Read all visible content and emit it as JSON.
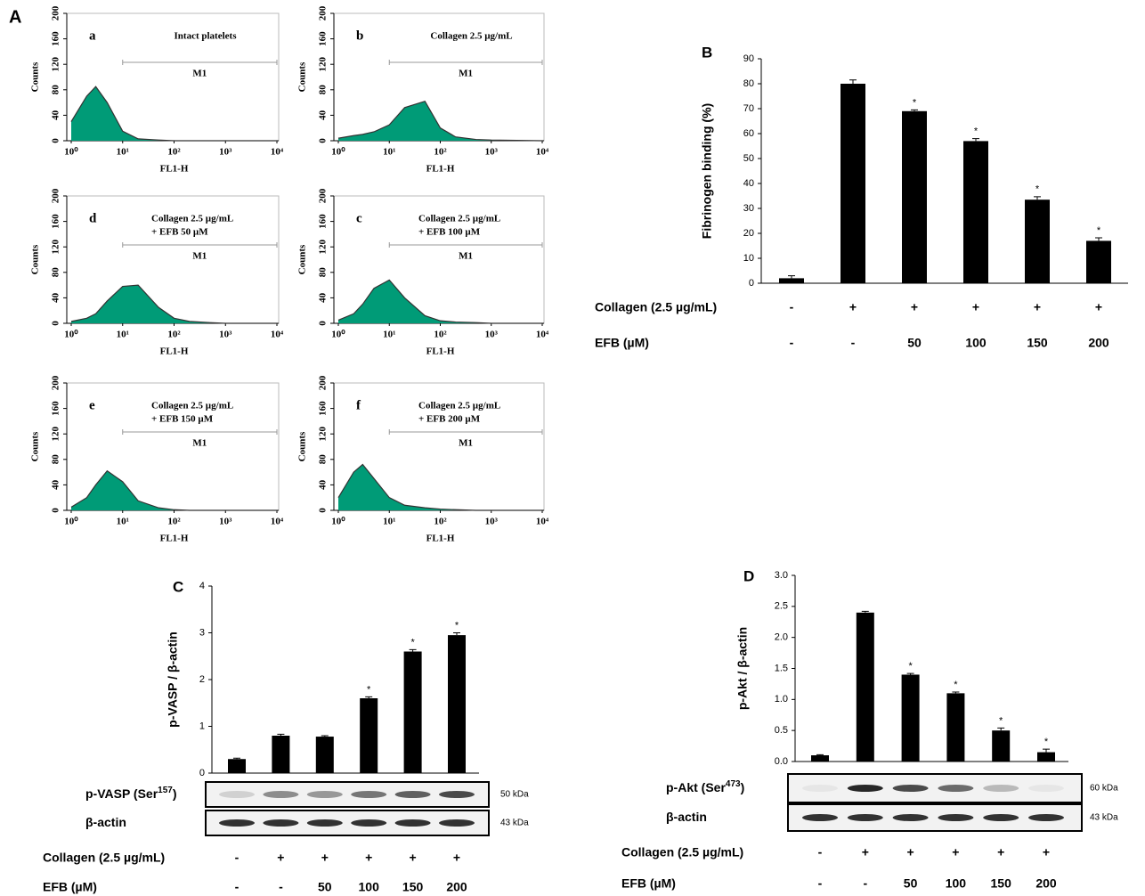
{
  "chart_data": [
    {
      "type": "area",
      "panel": "a",
      "title": [
        "Intact platelets"
      ],
      "marker": {
        "label": "M1",
        "range": [
          10,
          10000
        ]
      },
      "xlabel": "FL1-H",
      "ylabel": "Counts",
      "x": [
        1,
        2,
        3,
        5,
        10,
        20,
        50,
        100,
        200,
        500,
        1000,
        10000
      ],
      "values": [
        30,
        70,
        85,
        60,
        15,
        3,
        1,
        0,
        0,
        0,
        0,
        0
      ],
      "color": "#009b77",
      "xscale": "log",
      "xlim": [
        1,
        10000
      ],
      "xticks": [
        {
          "value": 1,
          "label": "10⁰"
        },
        {
          "value": 10,
          "label": "10¹"
        },
        {
          "value": 100,
          "label": "10²"
        },
        {
          "value": 1000,
          "label": "10³"
        },
        {
          "value": 10000,
          "label": "10⁴"
        }
      ],
      "ylim": [
        0,
        200
      ],
      "yticks": [
        0,
        40,
        80,
        120,
        160,
        200
      ]
    },
    {
      "type": "area",
      "panel": "b",
      "title": [
        "Collagen 2.5 µg/mL"
      ],
      "marker": {
        "label": "M1",
        "range": [
          10,
          10000
        ]
      },
      "xlabel": "FL1-H",
      "ylabel": "Counts",
      "x": [
        1,
        2,
        3,
        5,
        10,
        20,
        50,
        100,
        200,
        500,
        1000,
        10000
      ],
      "values": [
        4,
        8,
        10,
        14,
        25,
        52,
        62,
        20,
        6,
        2,
        1,
        0
      ],
      "color": "#009b77",
      "xscale": "log",
      "xlim": [
        1,
        10000
      ],
      "xticks": [
        {
          "value": 1,
          "label": "10⁰"
        },
        {
          "value": 10,
          "label": "10¹"
        },
        {
          "value": 100,
          "label": "10²"
        },
        {
          "value": 1000,
          "label": "10³"
        },
        {
          "value": 10000,
          "label": "10⁴"
        }
      ],
      "ylim": [
        0,
        200
      ],
      "yticks": [
        0,
        40,
        80,
        120,
        160,
        200
      ]
    },
    {
      "type": "area",
      "panel": "d",
      "title": [
        "Collagen 2.5 µg/mL",
        "+ EFB 50 µM"
      ],
      "marker": {
        "label": "M1",
        "range": [
          10,
          10000
        ]
      },
      "xlabel": "FL1-H",
      "ylabel": "Counts",
      "x": [
        1,
        2,
        3,
        5,
        10,
        20,
        50,
        100,
        200,
        500,
        1000,
        10000
      ],
      "values": [
        3,
        8,
        15,
        35,
        58,
        60,
        25,
        8,
        3,
        1,
        0,
        0
      ],
      "color": "#009b77",
      "xscale": "log",
      "xlim": [
        1,
        10000
      ],
      "xticks": [
        {
          "value": 1,
          "label": "10⁰"
        },
        {
          "value": 10,
          "label": "10¹"
        },
        {
          "value": 100,
          "label": "10²"
        },
        {
          "value": 1000,
          "label": "10³"
        },
        {
          "value": 10000,
          "label": "10⁴"
        }
      ],
      "ylim": [
        0,
        200
      ],
      "yticks": [
        0,
        40,
        80,
        120,
        160,
        200
      ]
    },
    {
      "type": "area",
      "panel": "c",
      "title": [
        "Collagen 2.5 µg/mL",
        "+ EFB 100 µM"
      ],
      "marker": {
        "label": "M1",
        "range": [
          10,
          10000
        ]
      },
      "xlabel": "FL1-H",
      "ylabel": "Counts",
      "x": [
        1,
        2,
        3,
        5,
        10,
        20,
        50,
        100,
        200,
        500,
        1000,
        10000
      ],
      "values": [
        5,
        15,
        30,
        55,
        68,
        40,
        12,
        4,
        2,
        1,
        0,
        0
      ],
      "color": "#009b77",
      "xscale": "log",
      "xlim": [
        1,
        10000
      ],
      "xticks": [
        {
          "value": 1,
          "label": "10⁰"
        },
        {
          "value": 10,
          "label": "10¹"
        },
        {
          "value": 100,
          "label": "10²"
        },
        {
          "value": 1000,
          "label": "10³"
        },
        {
          "value": 10000,
          "label": "10⁴"
        }
      ],
      "ylim": [
        0,
        200
      ],
      "yticks": [
        0,
        40,
        80,
        120,
        160,
        200
      ]
    },
    {
      "type": "area",
      "panel": "e",
      "title": [
        "Collagen 2.5 µg/mL",
        "+ EFB 150 µM"
      ],
      "marker": {
        "label": "M1",
        "range": [
          10,
          10000
        ]
      },
      "xlabel": "FL1-H",
      "ylabel": "Counts",
      "x": [
        1,
        2,
        3,
        5,
        10,
        20,
        50,
        100,
        200,
        500,
        1000,
        10000
      ],
      "values": [
        5,
        20,
        40,
        62,
        45,
        15,
        4,
        1,
        0,
        0,
        0,
        0
      ],
      "color": "#009b77",
      "xscale": "log",
      "xlim": [
        1,
        10000
      ],
      "xticks": [
        {
          "value": 1,
          "label": "10⁰"
        },
        {
          "value": 10,
          "label": "10¹"
        },
        {
          "value": 100,
          "label": "10²"
        },
        {
          "value": 1000,
          "label": "10³"
        },
        {
          "value": 10000,
          "label": "10⁴"
        }
      ],
      "ylim": [
        0,
        200
      ],
      "yticks": [
        0,
        40,
        80,
        120,
        160,
        200
      ]
    },
    {
      "type": "area",
      "panel": "f",
      "title": [
        "Collagen 2.5 µg/mL",
        "+ EFB 200 µM"
      ],
      "marker": {
        "label": "M1",
        "range": [
          10,
          10000
        ]
      },
      "xlabel": "FL1-H",
      "ylabel": "Counts",
      "x": [
        1,
        2,
        3,
        5,
        10,
        20,
        50,
        100,
        200,
        500,
        1000,
        10000
      ],
      "values": [
        20,
        60,
        72,
        50,
        20,
        8,
        4,
        2,
        1,
        0,
        0,
        0
      ],
      "color": "#009b77",
      "xscale": "log",
      "xlim": [
        1,
        10000
      ],
      "xticks": [
        {
          "value": 1,
          "label": "10⁰"
        },
        {
          "value": 10,
          "label": "10¹"
        },
        {
          "value": 100,
          "label": "10²"
        },
        {
          "value": 1000,
          "label": "10³"
        },
        {
          "value": 10000,
          "label": "10⁴"
        }
      ],
      "ylim": [
        0,
        200
      ],
      "yticks": [
        0,
        40,
        80,
        120,
        160,
        200
      ]
    },
    {
      "type": "bar",
      "panel": "B",
      "ylabel": "Fibrinogen binding (%)",
      "values": [
        2,
        80,
        69,
        57,
        33.5,
        17
      ],
      "errors": [
        1,
        1.5,
        0.5,
        1,
        1.2,
        1.2
      ],
      "annotations": [
        null,
        null,
        "*",
        "*",
        "*",
        "*"
      ],
      "color": "#000000",
      "ylim": [
        0,
        90
      ],
      "yticks": [
        0,
        10,
        20,
        30,
        40,
        50,
        60,
        70,
        80,
        90
      ],
      "rows": [
        {
          "label": "Collagen (2.5 µg/mL)",
          "values": [
            "-",
            "+",
            "+",
            "+",
            "+",
            "+"
          ]
        },
        {
          "label": "EFB (µM)",
          "values": [
            "-",
            "-",
            "50",
            "100",
            "150",
            "200"
          ]
        }
      ]
    },
    {
      "type": "bar",
      "panel": "C",
      "ylabel": "p-VASP / β-actin",
      "values": [
        0.3,
        0.8,
        0.78,
        1.6,
        2.6,
        2.95
      ],
      "errors": [
        0.02,
        0.03,
        0.02,
        0.03,
        0.04,
        0.05
      ],
      "annotations": [
        null,
        null,
        null,
        "*",
        "*",
        "*"
      ],
      "color": "#000000",
      "ylim": [
        0,
        4
      ],
      "yticks": [
        0,
        1,
        2,
        3,
        4
      ],
      "blots": [
        {
          "label": {
            "text": "p-VASP (Ser",
            "sup": "157",
            "end": ")"
          },
          "size": "50 kDa"
        },
        {
          "label": {
            "text": "β-actin"
          },
          "size": "43 kDa"
        }
      ],
      "rows": [
        {
          "label": "Collagen (2.5 µg/mL)",
          "values": [
            "-",
            "+",
            "+",
            "+",
            "+",
            "+"
          ]
        },
        {
          "label": "EFB (µM)",
          "values": [
            "-",
            "-",
            "50",
            "100",
            "150",
            "200"
          ]
        }
      ]
    },
    {
      "type": "bar",
      "panel": "D",
      "ylabel": "p-Akt / β-actin",
      "values": [
        0.1,
        2.4,
        1.4,
        1.1,
        0.5,
        0.15
      ],
      "errors": [
        0.01,
        0.02,
        0.02,
        0.02,
        0.04,
        0.05
      ],
      "annotations": [
        null,
        null,
        "*",
        "*",
        "*",
        "*"
      ],
      "color": "#000000",
      "ylim": [
        0,
        3
      ],
      "yticks": [
        {
          "value": 0,
          "label": "0.0"
        },
        0.5,
        {
          "value": 1,
          "label": "1.0"
        },
        1.5,
        {
          "value": 2,
          "label": "2.0"
        },
        2.5,
        {
          "value": 3,
          "label": "3.0"
        }
      ],
      "blots": [
        {
          "label": {
            "text": "p-Akt (Ser",
            "sup": "473",
            "end": ")"
          },
          "size": "60 kDa"
        },
        {
          "label": {
            "text": "β-actin"
          },
          "size": "43 kDa"
        }
      ],
      "rows": [
        {
          "label": "Collagen (2.5 µg/mL)",
          "values": [
            "-",
            "+",
            "+",
            "+",
            "+",
            "+"
          ]
        },
        {
          "label": "EFB (µM)",
          "values": [
            "-",
            "-",
            "50",
            "100",
            "150",
            "200"
          ]
        }
      ]
    }
  ],
  "figure_label": "A"
}
